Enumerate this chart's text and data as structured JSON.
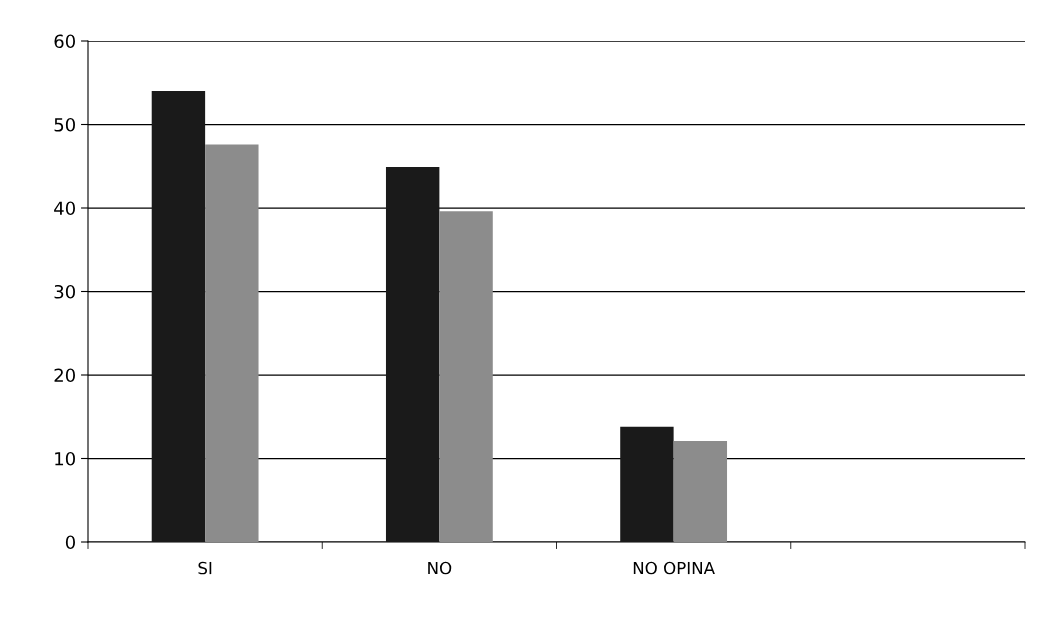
{
  "chart_data": {
    "type": "bar",
    "categories": [
      "SI",
      "NO",
      "NO OPINA",
      null
    ],
    "series": [
      {
        "color": "#1a1a1a",
        "values": [
          54,
          44.9,
          13.8,
          null
        ]
      },
      {
        "color": "#8c8c8c",
        "values": [
          47.6,
          39.6,
          12.1,
          null
        ]
      }
    ],
    "ylim": [
      0,
      60
    ],
    "yticks": [
      0,
      10,
      20,
      30,
      40,
      50,
      60
    ],
    "grid": "y",
    "legend": false
  }
}
